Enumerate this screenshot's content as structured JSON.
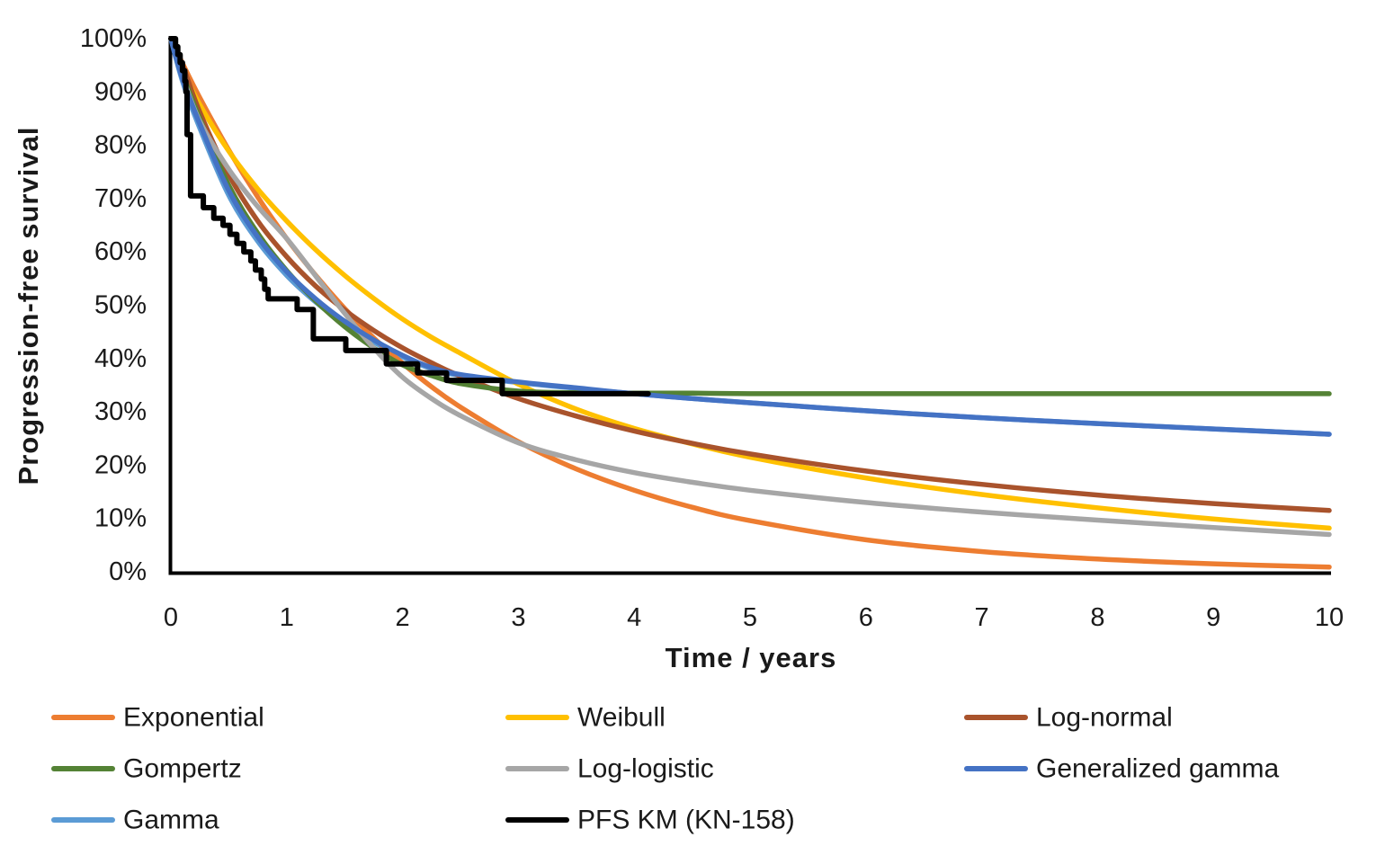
{
  "chart": {
    "y_axis": {
      "title": "Progression-free survival",
      "ticks": [
        "100%",
        "90%",
        "80%",
        "70%",
        "60%",
        "50%",
        "40%",
        "30%",
        "20%",
        "10%",
        "0%"
      ]
    },
    "x_axis": {
      "title": "Time / years",
      "ticks": [
        "0",
        "1",
        "2",
        "3",
        "4",
        "5",
        "6",
        "7",
        "8",
        "9",
        "10"
      ]
    }
  },
  "chart_data": {
    "type": "line",
    "title": "",
    "xlabel": "Time / years",
    "ylabel": "Progression-free survival",
    "xlim": [
      0,
      10
    ],
    "ylim_percent": [
      0,
      100
    ],
    "grid": false,
    "legend_position": "bottom",
    "x": [
      0,
      0.1,
      0.25,
      0.5,
      0.75,
      1,
      1.25,
      1.5,
      1.75,
      2,
      2.25,
      2.5,
      3,
      3.5,
      4,
      4.5,
      5,
      6,
      7,
      8,
      9,
      10
    ],
    "series": [
      {
        "name": "Exponential",
        "color": "#ED7D31",
        "values": [
          100,
          95.4,
          88.9,
          79.1,
          70.3,
          62.5,
          55.6,
          49.4,
          43.9,
          39.1,
          34.7,
          30.9,
          24.4,
          19.3,
          15.3,
          12.1,
          9.6,
          6.0,
          3.8,
          2.4,
          1.5,
          0.9
        ]
      },
      {
        "name": "Weibull",
        "color": "#FFC000",
        "values": [
          100,
          94.2,
          87.6,
          78.9,
          71.8,
          65.8,
          60.4,
          55.6,
          51.3,
          47.4,
          44.0,
          41.0,
          35.2,
          30.5,
          26.9,
          24.0,
          21.5,
          17.6,
          14.5,
          12.0,
          9.9,
          8.2
        ]
      },
      {
        "name": "Log-normal",
        "color": "#A9532C",
        "values": [
          100,
          95.1,
          86.2,
          74.5,
          65.8,
          59.1,
          53.6,
          49.1,
          45.3,
          42.0,
          39.2,
          36.7,
          32.5,
          29.2,
          26.4,
          24.1,
          22.1,
          18.9,
          16.4,
          14.4,
          12.8,
          11.5
        ]
      },
      {
        "name": "Gompertz",
        "color": "#548235",
        "values": [
          100,
          93.5,
          85.0,
          72.5,
          63.5,
          56.5,
          50.8,
          46.0,
          42.0,
          38.8,
          36.8,
          35.3,
          33.9,
          33.6,
          33.5,
          33.5,
          33.4,
          33.4,
          33.4,
          33.4,
          33.4,
          33.4
        ]
      },
      {
        "name": "Log-logistic",
        "color": "#A6A6A6",
        "values": [
          100,
          93.0,
          84.5,
          75.5,
          68.5,
          62.5,
          55.5,
          48.5,
          42.0,
          36.5,
          32.5,
          29.3,
          24.2,
          21.0,
          18.6,
          16.8,
          15.3,
          13.0,
          11.2,
          9.7,
          8.3,
          7.0
        ]
      },
      {
        "name": "Generalized gamma",
        "color": "#4472C4",
        "values": [
          100,
          92.5,
          84.0,
          71.5,
          62.8,
          56.3,
          51.2,
          47.0,
          43.5,
          40.6,
          38.3,
          37.0,
          35.6,
          34.5,
          33.4,
          32.5,
          31.7,
          30.2,
          28.9,
          27.8,
          26.8,
          25.8
        ]
      },
      {
        "name": "Gamma",
        "color": "#5B9BD5",
        "values": [
          100,
          92.0,
          83.2,
          70.6,
          62.0,
          55.6,
          50.6,
          46.5,
          43.1,
          40.3,
          38.1,
          36.8,
          35.5,
          34.4,
          33.4,
          32.5,
          31.7,
          30.2,
          28.9,
          27.8,
          26.8,
          25.8
        ]
      },
      {
        "name": "PFS KM (KN-158)",
        "color": "#000000",
        "style": "step",
        "points": [
          [
            0,
            100
          ],
          [
            0.04,
            98.5
          ],
          [
            0.06,
            97.0
          ],
          [
            0.08,
            95.5
          ],
          [
            0.1,
            94.0
          ],
          [
            0.12,
            92.0
          ],
          [
            0.13,
            90.0
          ],
          [
            0.14,
            82.0
          ],
          [
            0.17,
            70.5
          ],
          [
            0.28,
            68.3
          ],
          [
            0.37,
            66.3
          ],
          [
            0.45,
            65.0
          ],
          [
            0.51,
            63.3
          ],
          [
            0.57,
            61.6
          ],
          [
            0.63,
            60.0
          ],
          [
            0.69,
            58.3
          ],
          [
            0.73,
            56.6
          ],
          [
            0.78,
            54.9
          ],
          [
            0.81,
            53.0
          ],
          [
            0.84,
            51.2
          ],
          [
            1.09,
            49.2
          ],
          [
            1.23,
            43.7
          ],
          [
            1.51,
            41.5
          ],
          [
            1.86,
            39.0
          ],
          [
            2.13,
            37.3
          ],
          [
            2.38,
            35.9
          ],
          [
            2.86,
            33.4
          ],
          [
            4.12,
            33.4
          ]
        ]
      }
    ],
    "draw_order": [
      "Gamma",
      "Exponential",
      "Weibull",
      "Log-normal",
      "Gompertz",
      "Log-logistic",
      "Generalized gamma",
      "PFS KM (KN-158)"
    ],
    "legend_order": [
      "Exponential",
      "Weibull",
      "Log-normal",
      "Gompertz",
      "Log-logistic",
      "Generalized gamma",
      "Gamma",
      "PFS KM (KN-158)"
    ]
  }
}
